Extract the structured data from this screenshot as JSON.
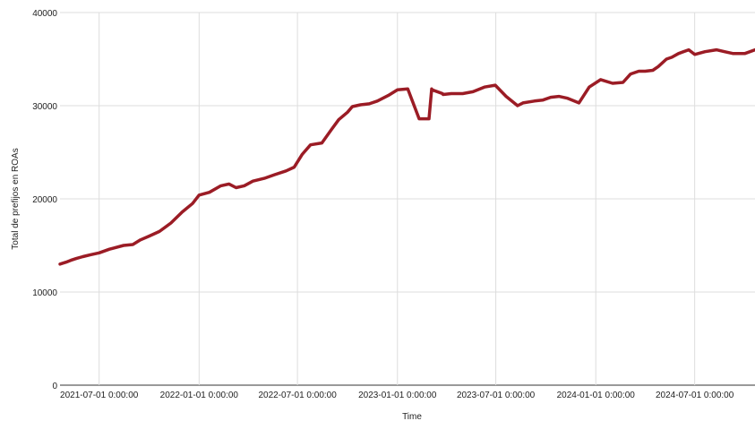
{
  "chart_data": {
    "type": "line",
    "title": "",
    "xlabel": "Time",
    "ylabel": "Total de prefijos en ROAs",
    "ylim": [
      0,
      40000
    ],
    "yticks": [
      0,
      10000,
      20000,
      30000,
      40000
    ],
    "xlim": [
      "2021-04-20",
      "2024-10-20"
    ],
    "xticks": [
      {
        "date": "2021-07-01",
        "label": "2021-07-01 0:00:00"
      },
      {
        "date": "2022-01-01",
        "label": "2022-01-01 0:00:00"
      },
      {
        "date": "2022-07-01",
        "label": "2022-07-01 0:00:00"
      },
      {
        "date": "2023-01-01",
        "label": "2023-01-01 0:00:00"
      },
      {
        "date": "2023-07-01",
        "label": "2023-07-01 0:00:00"
      },
      {
        "date": "2024-01-01",
        "label": "2024-01-01 0:00:00"
      },
      {
        "date": "2024-07-01",
        "label": "2024-07-01 0:00:00"
      }
    ],
    "grid": true,
    "line_color": "#9b1c25",
    "series": [
      {
        "x": [
          "2021-04-20",
          "2021-05-01",
          "2021-05-10",
          "2021-05-20",
          "2021-06-01",
          "2021-06-15",
          "2021-07-01",
          "2021-07-20",
          "2021-08-15",
          "2021-09-01",
          "2021-09-15",
          "2021-10-01",
          "2021-10-20",
          "2021-11-10",
          "2021-12-01",
          "2021-12-20",
          "2022-01-01",
          "2022-01-20",
          "2022-02-10",
          "2022-02-25",
          "2022-03-10",
          "2022-03-25",
          "2022-04-10",
          "2022-05-01",
          "2022-05-20",
          "2022-06-10",
          "2022-06-25",
          "2022-07-10",
          "2022-07-25",
          "2022-08-15",
          "2022-09-01",
          "2022-09-15",
          "2022-10-01",
          "2022-10-10",
          "2022-10-25",
          "2022-11-10",
          "2022-11-25",
          "2022-12-15",
          "2023-01-01",
          "2023-01-20",
          "2023-02-10",
          "2023-02-28",
          "2023-03-05",
          "2023-03-06",
          "2023-03-25",
          "2023-03-26",
          "2023-04-10",
          "2023-05-01",
          "2023-05-20",
          "2023-06-10",
          "2023-06-30",
          "2023-07-20",
          "2023-08-10",
          "2023-08-20",
          "2023-09-10",
          "2023-09-25",
          "2023-10-10",
          "2023-10-25",
          "2023-11-10",
          "2023-12-01",
          "2023-12-20",
          "2024-01-10",
          "2024-02-01",
          "2024-02-20",
          "2024-03-05",
          "2024-03-20",
          "2024-04-01",
          "2024-04-15",
          "2024-04-25",
          "2024-05-10",
          "2024-05-20",
          "2024-06-01",
          "2024-06-20",
          "2024-07-01",
          "2024-07-20",
          "2024-08-10",
          "2024-08-25",
          "2024-09-10",
          "2024-10-01",
          "2024-10-20"
        ],
        "y": [
          13000,
          13200,
          13400,
          13600,
          13800,
          14000,
          14200,
          14600,
          15000,
          15100,
          15600,
          16000,
          16500,
          17400,
          18600,
          19500,
          20400,
          20700,
          21400,
          21600,
          21200,
          21400,
          21900,
          22200,
          22600,
          23000,
          23400,
          24800,
          25800,
          26000,
          27400,
          28500,
          29300,
          29900,
          30100,
          30200,
          30500,
          31100,
          31700,
          31800,
          28600,
          28600,
          31800,
          31700,
          31300,
          31200,
          31300,
          31300,
          31500,
          32000,
          32200,
          31000,
          30000,
          30300,
          30500,
          30600,
          30900,
          31000,
          30800,
          30300,
          32000,
          32800,
          32400,
          32500,
          33400,
          33700,
          33700,
          33800,
          34200,
          35000,
          35200,
          35600,
          36000,
          35500,
          35800,
          36000,
          35800,
          35600,
          35600,
          36000
        ]
      }
    ]
  }
}
